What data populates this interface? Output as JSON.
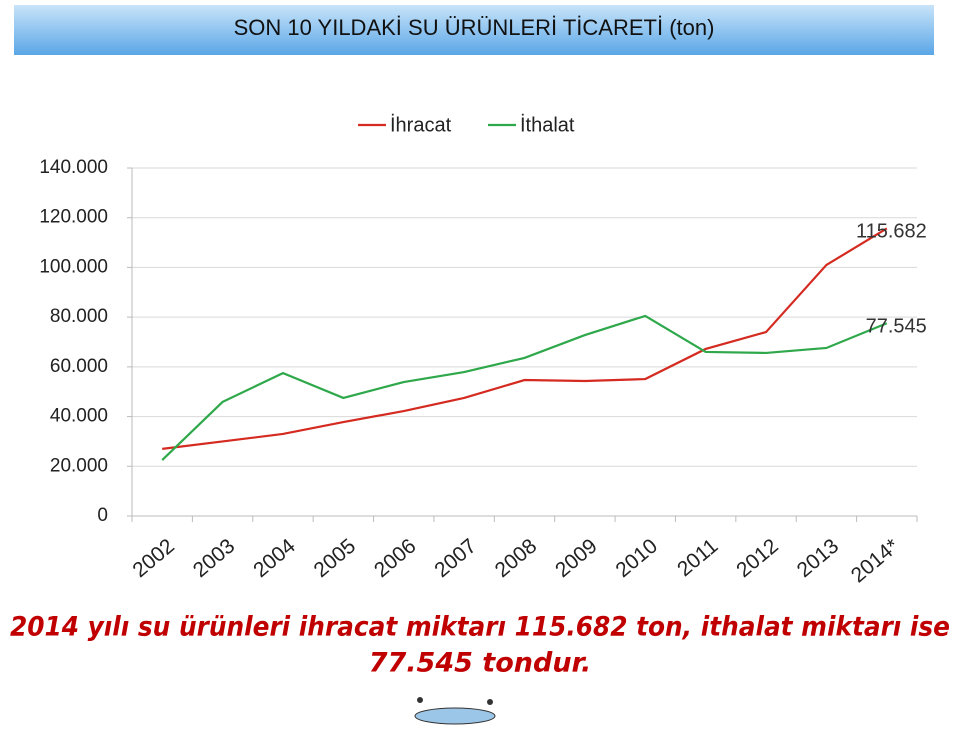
{
  "chart_data": {
    "type": "line",
    "title": "SON 10 YILDAKİ SU ÜRÜNLERİ TİCARETİ (ton)",
    "categories": [
      "2002",
      "2003",
      "2004",
      "2005",
      "2006",
      "2007",
      "2008",
      "2009",
      "2010",
      "2011",
      "2012",
      "2013",
      "2014*"
    ],
    "series": [
      {
        "name": "İhracat",
        "color": "#d42a20",
        "values": [
          27000,
          30000,
          33000,
          37800,
          42200,
          47500,
          54700,
          54300,
          55100,
          67200,
          74000,
          101000,
          115682
        ],
        "value_labels": [
          null,
          null,
          null,
          null,
          null,
          null,
          null,
          null,
          null,
          null,
          null,
          null,
          "115.682"
        ]
      },
      {
        "name": "İthalat",
        "color": "#2ea84a",
        "values": [
          22500,
          45900,
          57500,
          47500,
          53900,
          57900,
          63600,
          72800,
          80500,
          66000,
          65600,
          67600,
          77545
        ],
        "value_labels": [
          null,
          null,
          null,
          null,
          null,
          null,
          null,
          null,
          null,
          null,
          null,
          null,
          "77.545"
        ]
      }
    ],
    "ylim": [
      0,
      140000
    ],
    "yticks": [
      0,
      {
        "value": 20000,
        "label": "20.000"
      },
      {
        "value": 40000,
        "label": "40.000"
      },
      {
        "value": 60000,
        "label": "60.000"
      },
      {
        "value": 80000,
        "label": "80.000"
      },
      {
        "value": 100000,
        "label": "100.000"
      },
      {
        "value": 120000,
        "label": "120.000"
      },
      {
        "value": 140000,
        "label": "140.000"
      }
    ],
    "grid": true,
    "legend": "top",
    "footnote": [
      "2014 yılı su ürünleri ihracat miktarı 115.682  ton, ithalat miktarı ise",
      "77.545 tondur."
    ]
  }
}
